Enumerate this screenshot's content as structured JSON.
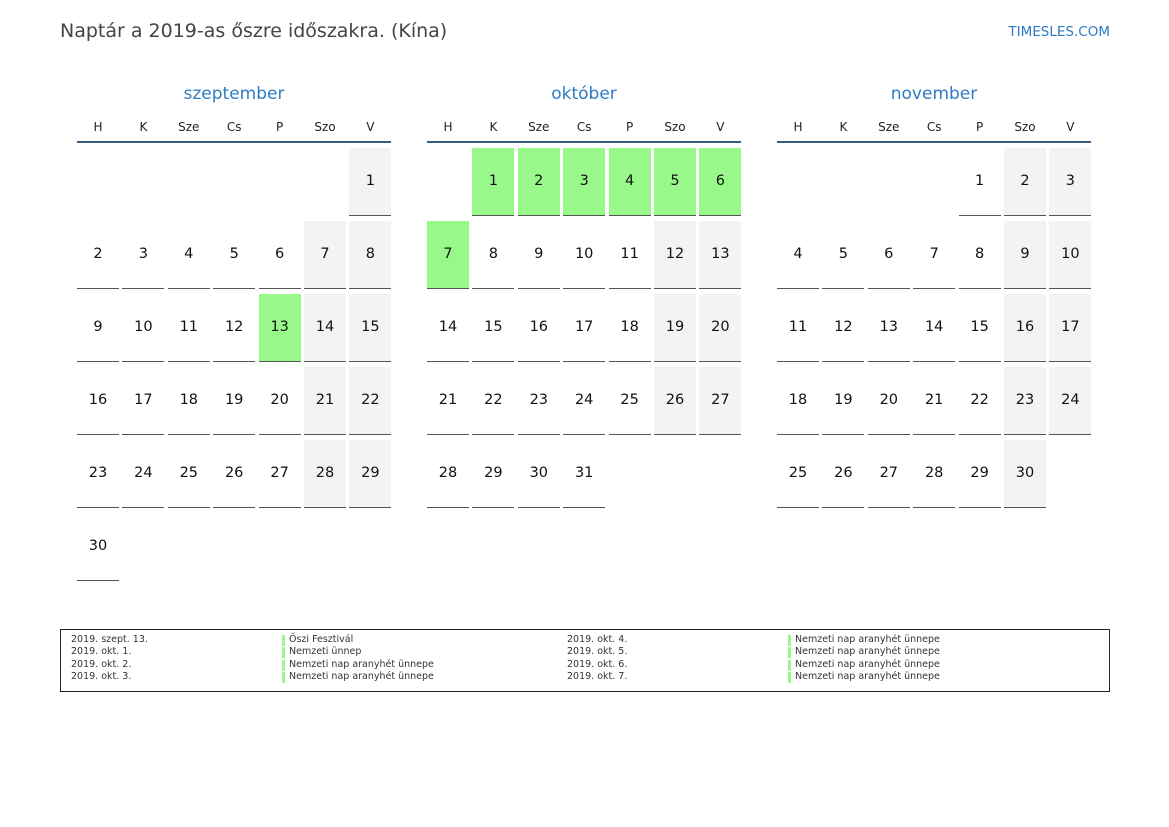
{
  "title": "Naptár a 2019-as őszre időszakra. (Kína)",
  "brand": "TIMESLES.COM",
  "weekdays": [
    "H",
    "K",
    "Sze",
    "Cs",
    "P",
    "Szo",
    "V"
  ],
  "colors": {
    "holiday": "#98f98a",
    "weekend": "#f3f3f3",
    "accent": "#2e7bc4"
  },
  "months": [
    {
      "name": "szeptember",
      "first_col": 6,
      "days": [
        "1",
        "2",
        "3",
        "4",
        "5",
        "6",
        "7",
        "8",
        "9",
        "10",
        "11",
        "12",
        "13",
        "14",
        "15",
        "16",
        "17",
        "18",
        "19",
        "20",
        "21",
        "22",
        "23",
        "24",
        "25",
        "26",
        "27",
        "28",
        "29",
        "30"
      ],
      "holidays": [
        "13"
      ]
    },
    {
      "name": "október",
      "first_col": 1,
      "days": [
        "1",
        "2",
        "3",
        "4",
        "5",
        "6",
        "7",
        "8",
        "9",
        "10",
        "11",
        "12",
        "13",
        "14",
        "15",
        "16",
        "17",
        "18",
        "19",
        "20",
        "21",
        "22",
        "23",
        "24",
        "25",
        "26",
        "27",
        "28",
        "29",
        "30",
        "31"
      ],
      "holidays": [
        "1",
        "2",
        "3",
        "4",
        "5",
        "6",
        "7"
      ]
    },
    {
      "name": "november",
      "first_col": 4,
      "days": [
        "1",
        "2",
        "3",
        "4",
        "5",
        "6",
        "7",
        "8",
        "9",
        "10",
        "11",
        "12",
        "13",
        "14",
        "15",
        "16",
        "17",
        "18",
        "19",
        "20",
        "21",
        "22",
        "23",
        "24",
        "25",
        "26",
        "27",
        "28",
        "29",
        "30"
      ],
      "holidays": []
    }
  ],
  "legend": [
    {
      "date": "2019. szept. 13.",
      "name": "Őszi Fesztivál"
    },
    {
      "date": "2019. okt. 1.",
      "name": "Nemzeti ünnep"
    },
    {
      "date": "2019. okt. 2.",
      "name": "Nemzeti nap aranyhét ünnepe"
    },
    {
      "date": "2019. okt. 3.",
      "name": "Nemzeti nap aranyhét ünnepe"
    },
    {
      "date": "2019. okt. 4.",
      "name": "Nemzeti nap aranyhét ünnepe"
    },
    {
      "date": "2019. okt. 5.",
      "name": "Nemzeti nap aranyhét ünnepe"
    },
    {
      "date": "2019. okt. 6.",
      "name": "Nemzeti nap aranyhét ünnepe"
    },
    {
      "date": "2019. okt. 7.",
      "name": "Nemzeti nap aranyhét ünnepe"
    }
  ]
}
